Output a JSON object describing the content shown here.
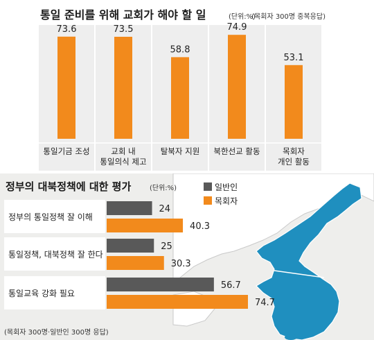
{
  "top": {
    "title": "통일 준비를 위해 교회가 해야 할 일",
    "unit": "(단위:%)",
    "note": "(목회자 300명 중복응답)"
  },
  "bottom": {
    "title": "정부의 대북정책에 대한 평가",
    "unit": "(단위:%)",
    "footnote": "(목회자 300명·일반인 300명 응답)"
  },
  "colors": {
    "orange": "#f28a1c",
    "gray": "#595959",
    "map_blue": "#1f8fbf",
    "map_land": "#ffffff",
    "panel_bg": "#eeeeec",
    "column_bg": "#eeeeee"
  },
  "chart_data": [
    {
      "type": "bar",
      "title": "통일 준비를 위해 교회가 해야 할 일",
      "categories": [
        "통일기금 조성",
        "교회 내\n통일의식 제고",
        "탈북자 지원",
        "북한선교 활동",
        "목회자\n개인 활동"
      ],
      "values": [
        73.6,
        73.5,
        58.8,
        74.9,
        53.1
      ],
      "value_labels": [
        "73.6",
        "73.5",
        "58.8",
        "74.9",
        "53.1"
      ],
      "ylim": [
        0,
        80
      ],
      "grid": false,
      "legend": "none"
    },
    {
      "type": "bar",
      "orientation": "horizontal",
      "title": "정부의 대북정책에 대한 평가",
      "categories": [
        "정부의 통일정책 잘 이해",
        "통일정책, 대북정책 잘 한다",
        "통일교육 강화 필요"
      ],
      "series": [
        {
          "name": "일반인",
          "values": [
            24,
            25,
            56.7
          ],
          "value_labels": [
            "24",
            "25",
            "56.7"
          ]
        },
        {
          "name": "목회자",
          "values": [
            40.3,
            30.3,
            74.7
          ],
          "value_labels": [
            "40.3",
            "30.3",
            "74.7"
          ]
        }
      ],
      "xlim": [
        0,
        80
      ],
      "grid": false,
      "legend": "top-right"
    }
  ]
}
